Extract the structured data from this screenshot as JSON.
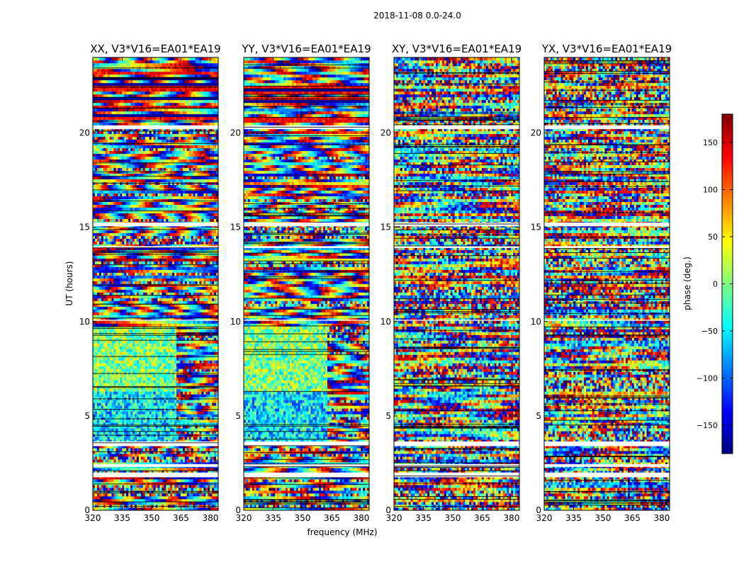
{
  "figure": {
    "suptitle": "2018-11-08 0.0-24.0",
    "xlabel": "frequency (MHz)",
    "ylabel": "UT (hours)",
    "colorbar_label": "phase (deg.)"
  },
  "chart_data": {
    "type": "heatmap",
    "panels": [
      {
        "title": "XX, V3*V16=EA01*EA19",
        "pol": "XX"
      },
      {
        "title": "YY, V3*V16=EA01*EA19",
        "pol": "YY"
      },
      {
        "title": "XY, V3*V16=EA01*EA19",
        "pol": "XY"
      },
      {
        "title": "YX, V3*V16=EA01*EA19",
        "pol": "YX"
      }
    ],
    "xlim": [
      320,
      384
    ],
    "ylim": [
      0,
      24
    ],
    "xticks": [
      320,
      335,
      350,
      365,
      380
    ],
    "xtick_labels": [
      "320",
      "335",
      "350",
      "365",
      "380"
    ],
    "yticks": [
      0,
      5,
      10,
      15,
      20
    ],
    "ytick_labels": [
      "0",
      "5",
      "10",
      "15",
      "20"
    ],
    "colorbar": {
      "colormap": "jet",
      "vmin": -180,
      "vmax": 180,
      "ticks": [
        -150,
        -100,
        -50,
        0,
        50,
        100,
        150
      ],
      "tick_labels": [
        "−150",
        "−100",
        "−50",
        "0",
        "50",
        "100",
        "150"
      ]
    },
    "flagged_bands_hours": [
      [
        3.4,
        3.65
      ],
      [
        1.75,
        2.0
      ],
      [
        15.05,
        15.25
      ],
      [
        20.2,
        20.4
      ],
      [
        10.05,
        10.1
      ],
      [
        13.9,
        14.0
      ],
      [
        2.3,
        2.45
      ]
    ],
    "sharp_transition_mhz": 363
  },
  "colors": {
    "axes": "#000000",
    "background": "#ffffff"
  }
}
